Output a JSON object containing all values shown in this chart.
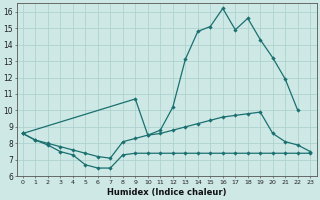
{
  "xlabel": "Humidex (Indice chaleur)",
  "bg_color": "#cde8e5",
  "grid_color": "#aacfcc",
  "line_color": "#1a7070",
  "ylim": [
    6,
    16.5
  ],
  "xlim": [
    -0.5,
    23.5
  ],
  "yticks": [
    6,
    7,
    8,
    9,
    10,
    11,
    12,
    13,
    14,
    15,
    16
  ],
  "xticks": [
    0,
    1,
    2,
    3,
    4,
    5,
    6,
    7,
    8,
    9,
    10,
    11,
    12,
    13,
    14,
    15,
    16,
    17,
    18,
    19,
    20,
    21,
    22,
    23
  ],
  "line_a_x": [
    0,
    1,
    2,
    3,
    4,
    5,
    6,
    7,
    8,
    9,
    10,
    11,
    12,
    13,
    14,
    15,
    16,
    17,
    18,
    19,
    20,
    21,
    22,
    23
  ],
  "line_a_y": [
    8.6,
    8.2,
    7.9,
    7.5,
    7.3,
    6.7,
    6.5,
    6.5,
    7.3,
    7.4,
    7.4,
    7.4,
    7.4,
    7.4,
    7.4,
    7.4,
    7.4,
    7.4,
    7.4,
    7.4,
    7.4,
    7.4,
    7.4,
    7.4
  ],
  "line_b_x": [
    0,
    1,
    2,
    3,
    4,
    5,
    6,
    7,
    8,
    9,
    10,
    11,
    12,
    13,
    14,
    15,
    16,
    17,
    18,
    19,
    20,
    21,
    22,
    23
  ],
  "line_b_y": [
    8.6,
    8.2,
    8.0,
    7.8,
    7.6,
    7.4,
    7.2,
    7.1,
    8.1,
    8.3,
    8.5,
    8.6,
    8.8,
    9.0,
    9.2,
    9.4,
    9.6,
    9.7,
    9.8,
    9.9,
    8.6,
    8.1,
    7.9,
    7.5
  ],
  "line_c_x": [
    0,
    9,
    10,
    11,
    12,
    13,
    14,
    15,
    16,
    17,
    18,
    19,
    20,
    21,
    22
  ],
  "line_c_y": [
    8.6,
    10.7,
    8.5,
    8.8,
    10.2,
    13.1,
    14.8,
    15.1,
    16.2,
    14.9,
    15.6,
    14.3,
    13.2,
    11.9,
    10.0
  ]
}
